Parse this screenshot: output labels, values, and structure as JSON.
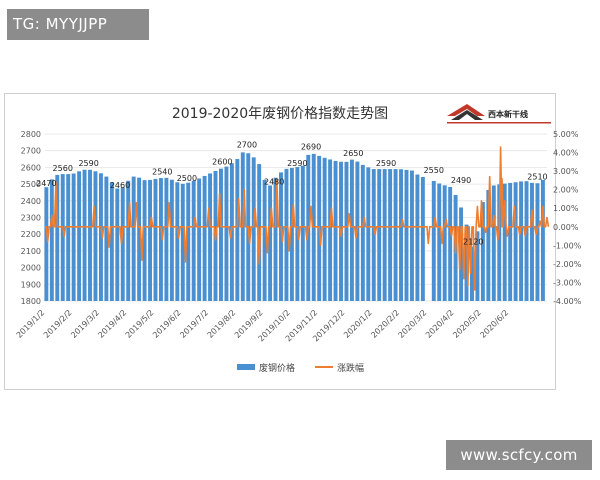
{
  "overlay": {
    "tag_text": "TG: MYYJJPP",
    "watermark_text": "www.scfcy.com"
  },
  "logo": {
    "name": "西本新干线"
  },
  "colors": {
    "bar": "#4a90d0",
    "line": "#ed7d31",
    "grid": "#e3e3e3",
    "axis_text": "#555555"
  },
  "chart_data": {
    "type": "bar",
    "title": "2019-2020年废钢价格指数走势图",
    "legend": [
      "废钢价格",
      "涨跌幅"
    ],
    "legend_position": "bottom",
    "y_left": {
      "min": 1800,
      "max": 2800,
      "step": 100,
      "ticks": [
        "1800",
        "1900",
        "2000",
        "2100",
        "2200",
        "2300",
        "2400",
        "2500",
        "2600",
        "2700",
        "2800"
      ]
    },
    "y_right": {
      "min": -4,
      "max": 5,
      "step": 1,
      "ticks": [
        "-4.00%",
        "-3.00%",
        "-2.00%",
        "-1.00%",
        "0.00%",
        "1.00%",
        "2.00%",
        "3.00%",
        "4.00%",
        "5.00%"
      ]
    },
    "x_ticks": [
      "2019/1/2",
      "2019/2/2",
      "2019/3/2",
      "2019/4/2",
      "2019/5/2",
      "2019/6/2",
      "2019/7/2",
      "2019/8/2",
      "2019/9/2",
      "2019/10/2",
      "2019/11/2",
      "2019/12/2",
      "2020/1/2",
      "2020/2/2",
      "2020/3/2",
      "2020/4/2",
      "2020/5/2",
      "2020/6/2"
    ],
    "months_total": 18.4,
    "series": [
      {
        "name": "废钢价格",
        "kind": "bar",
        "axis": "left",
        "anchors": [
          [
            0,
            2470
          ],
          [
            0.3,
            2540
          ],
          [
            0.5,
            2560
          ],
          [
            1.0,
            2560
          ],
          [
            1.3,
            2580
          ],
          [
            1.55,
            2590
          ],
          [
            2.0,
            2570
          ],
          [
            2.3,
            2540
          ],
          [
            2.6,
            2480
          ],
          [
            2.75,
            2460
          ],
          [
            3.1,
            2530
          ],
          [
            3.3,
            2550
          ],
          [
            3.7,
            2520
          ],
          [
            4.0,
            2530
          ],
          [
            4.4,
            2540
          ],
          [
            4.6,
            2530
          ],
          [
            5.0,
            2500
          ],
          [
            5.3,
            2510
          ],
          [
            5.6,
            2530
          ],
          [
            6.0,
            2560
          ],
          [
            6.4,
            2590
          ],
          [
            6.6,
            2600
          ],
          [
            7.0,
            2640
          ],
          [
            7.3,
            2700
          ],
          [
            7.6,
            2670
          ],
          [
            7.85,
            2620
          ],
          [
            8.0,
            2540
          ],
          [
            8.2,
            2480
          ],
          [
            8.5,
            2550
          ],
          [
            8.8,
            2590
          ],
          [
            9.2,
            2600
          ],
          [
            9.45,
            2610
          ],
          [
            9.6,
            2660
          ],
          [
            9.7,
            2690
          ],
          [
            10.2,
            2660
          ],
          [
            10.6,
            2640
          ],
          [
            11.0,
            2630
          ],
          [
            11.3,
            2650
          ],
          [
            11.7,
            2610
          ],
          [
            12.0,
            2590
          ],
          [
            12.5,
            2590
          ],
          [
            13.0,
            2590
          ],
          [
            13.5,
            2580
          ],
          [
            13.7,
            2550
          ],
          [
            14.1,
            2530
          ],
          [
            14.5,
            2500
          ],
          [
            14.9,
            2480
          ],
          [
            15.1,
            2420
          ],
          [
            15.4,
            2300
          ],
          [
            15.6,
            2130
          ],
          [
            15.7,
            2120
          ],
          [
            15.9,
            2250
          ],
          [
            16.1,
            2440
          ],
          [
            16.4,
            2490
          ],
          [
            16.7,
            2500
          ],
          [
            17.2,
            2510
          ],
          [
            17.6,
            2520
          ],
          [
            18.0,
            2500
          ],
          [
            18.4,
            2540
          ]
        ],
        "gaps": [
          [
            13.85,
            14.05
          ]
        ]
      },
      {
        "name": "涨跌幅",
        "kind": "line",
        "axis": "right",
        "spikes": [
          [
            0.1,
            -0.8
          ],
          [
            0.25,
            0.6
          ],
          [
            0.4,
            2.4
          ],
          [
            0.7,
            -0.5
          ],
          [
            1.8,
            1.1
          ],
          [
            2.1,
            -0.6
          ],
          [
            2.35,
            -1.1
          ],
          [
            2.8,
            -0.9
          ],
          [
            3.1,
            1.3
          ],
          [
            3.35,
            1.3
          ],
          [
            3.55,
            -1.8
          ],
          [
            3.9,
            0.5
          ],
          [
            4.3,
            -0.7
          ],
          [
            4.55,
            1.3
          ],
          [
            4.9,
            -0.6
          ],
          [
            5.15,
            -1.9
          ],
          [
            5.5,
            0.5
          ],
          [
            6.0,
            1.0
          ],
          [
            6.25,
            -0.7
          ],
          [
            6.4,
            1.8
          ],
          [
            6.8,
            -0.6
          ],
          [
            7.1,
            1.5
          ],
          [
            7.3,
            2.0
          ],
          [
            7.5,
            -0.9
          ],
          [
            7.7,
            1.0
          ],
          [
            7.85,
            -2.0
          ],
          [
            8.15,
            -1.4
          ],
          [
            8.3,
            1.0
          ],
          [
            8.5,
            2.5
          ],
          [
            8.7,
            -0.8
          ],
          [
            8.95,
            -1.3
          ],
          [
            9.1,
            1.2
          ],
          [
            9.3,
            -0.7
          ],
          [
            9.6,
            -0.7
          ],
          [
            9.75,
            1.1
          ],
          [
            10.1,
            -1.0
          ],
          [
            10.5,
            1.0
          ],
          [
            10.85,
            -0.5
          ],
          [
            11.15,
            0.7
          ],
          [
            11.4,
            -0.6
          ],
          [
            11.7,
            0.5
          ],
          [
            12.1,
            -0.4
          ],
          [
            13.1,
            0.4
          ],
          [
            14.05,
            -0.9
          ],
          [
            14.3,
            0.5
          ],
          [
            14.55,
            -0.9
          ],
          [
            14.7,
            0.4
          ],
          [
            14.9,
            -0.5
          ],
          [
            15.05,
            -1.4
          ],
          [
            15.2,
            -2.3
          ],
          [
            15.35,
            -2.8
          ],
          [
            15.5,
            -3.2
          ],
          [
            15.6,
            -2.5
          ],
          [
            15.75,
            -3.4
          ],
          [
            15.85,
            1.1
          ],
          [
            16.0,
            1.4
          ],
          [
            16.15,
            -0.3
          ],
          [
            16.3,
            2.7
          ],
          [
            16.45,
            0.6
          ],
          [
            16.6,
            -0.7
          ],
          [
            16.7,
            4.3
          ],
          [
            16.75,
            2.6
          ],
          [
            16.85,
            1.4
          ],
          [
            16.95,
            -0.5
          ],
          [
            17.2,
            1.1
          ],
          [
            17.4,
            -0.4
          ],
          [
            17.6,
            -0.5
          ],
          [
            17.85,
            0.9
          ],
          [
            18.0,
            -0.4
          ],
          [
            18.15,
            0.3
          ],
          [
            18.25,
            1.1
          ],
          [
            18.4,
            0.5
          ]
        ]
      }
    ],
    "data_labels": [
      {
        "month": 0.05,
        "value": "2470"
      },
      {
        "month": 0.65,
        "value": "2560"
      },
      {
        "month": 1.6,
        "value": "2590"
      },
      {
        "month": 2.75,
        "value": "2460"
      },
      {
        "month": 4.3,
        "value": "2540"
      },
      {
        "month": 5.2,
        "value": "2500"
      },
      {
        "month": 6.5,
        "value": "2600"
      },
      {
        "month": 7.4,
        "value": "2700"
      },
      {
        "month": 8.4,
        "value": "2480"
      },
      {
        "month": 9.25,
        "value": "2590"
      },
      {
        "month": 9.75,
        "value": "2690"
      },
      {
        "month": 11.3,
        "value": "2650"
      },
      {
        "month": 12.5,
        "value": "2590"
      },
      {
        "month": 14.25,
        "value": "2550"
      },
      {
        "month": 15.25,
        "value": "2490"
      },
      {
        "month": 15.7,
        "value": "2120"
      },
      {
        "month": 18.05,
        "value": "2510"
      }
    ]
  }
}
